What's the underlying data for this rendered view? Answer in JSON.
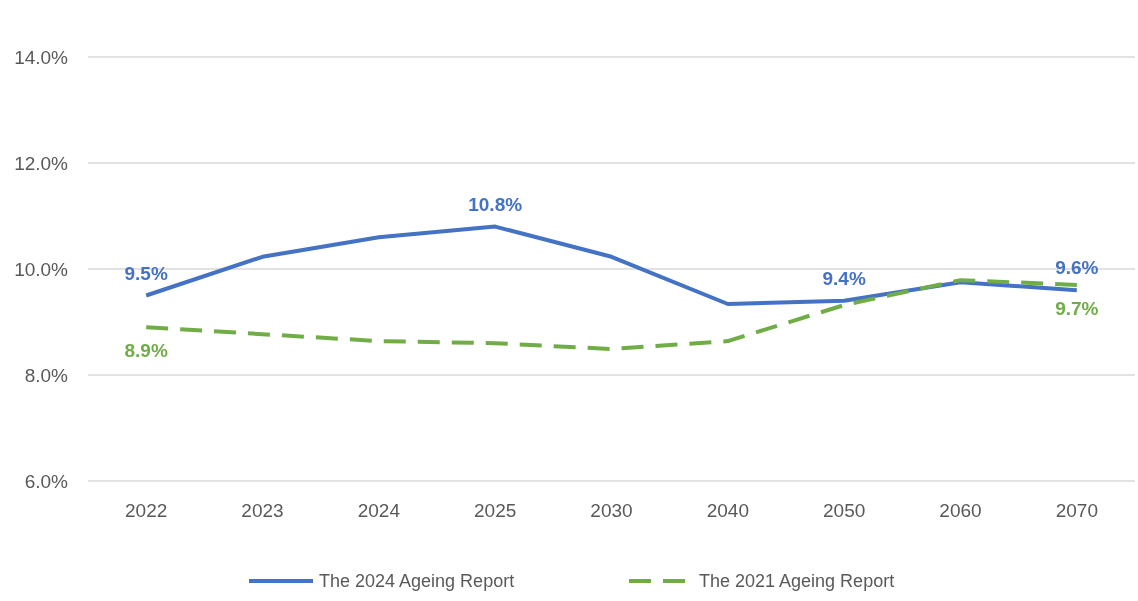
{
  "chart_data": {
    "type": "line",
    "categories": [
      "2022",
      "2023",
      "2024",
      "2025",
      "2030",
      "2040",
      "2050",
      "2060",
      "2070"
    ],
    "series": [
      {
        "name": "The 2024 Ageing Report",
        "color": "#4472c4",
        "line_style": "solid",
        "values": [
          9.5,
          10.23,
          10.6,
          10.8,
          10.23,
          9.34,
          9.4,
          9.75,
          9.6
        ],
        "value_labels": [
          "9.5%",
          null,
          null,
          "10.8%",
          null,
          null,
          "9.4%",
          null,
          "9.6%"
        ]
      },
      {
        "name": "The 2021 Ageing Report",
        "color": "#70ad47",
        "line_style": "dashed",
        "values": [
          8.9,
          8.77,
          8.64,
          8.6,
          8.49,
          8.64,
          9.32,
          9.79,
          9.7
        ],
        "value_labels": [
          "8.9%",
          null,
          null,
          null,
          null,
          null,
          null,
          null,
          "9.7%"
        ]
      }
    ],
    "ylim": [
      6,
      14
    ],
    "yticks": [
      {
        "value": 6,
        "label": "6.0%"
      },
      {
        "value": 8,
        "label": "8.0%"
      },
      {
        "value": 10,
        "label": "10.0%"
      },
      {
        "value": 12,
        "label": "12.0%"
      },
      {
        "value": 14,
        "label": "14.0%"
      }
    ],
    "grid": "y",
    "legend": "bottom",
    "marker": "none"
  }
}
